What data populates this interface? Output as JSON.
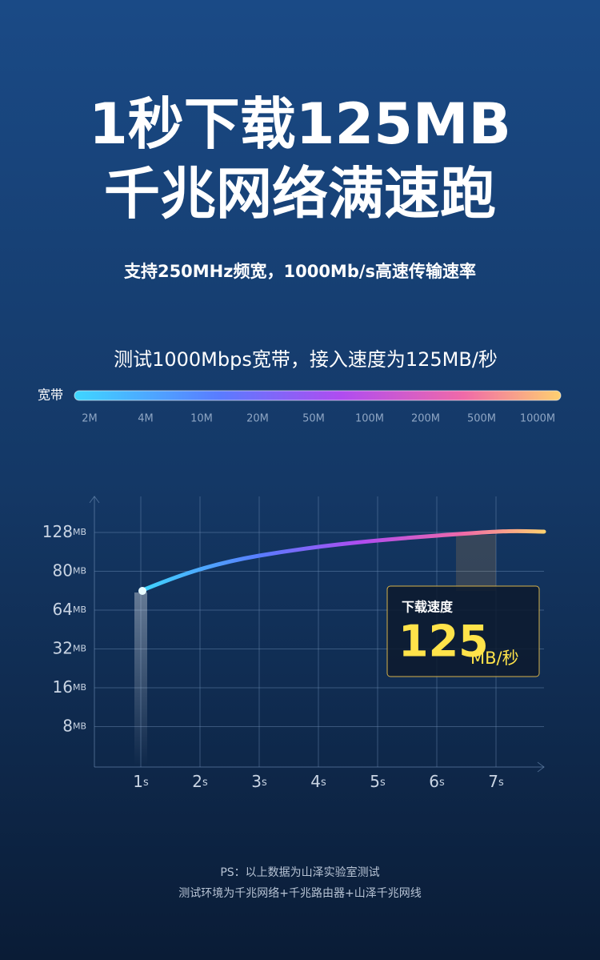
{
  "header": {
    "title_lines": [
      "1秒下载125MB",
      "千兆网络满速跑"
    ],
    "subtitle": "支持250MHz频宽，1000Mb/s高速传输速率"
  },
  "bandwidth": {
    "caption": "测试1000Mbps宽带，接入速度为125MB/秒",
    "label": "宽带",
    "ticks": [
      "2M",
      "4M",
      "10M",
      "20M",
      "50M",
      "100M",
      "200M",
      "500M",
      "1000M"
    ]
  },
  "speed_chart": {
    "y_labels": [
      {
        "num": "128",
        "unit": "MB"
      },
      {
        "num": "80",
        "unit": "MB"
      },
      {
        "num": "64",
        "unit": "MB"
      },
      {
        "num": "32",
        "unit": "MB"
      },
      {
        "num": "16",
        "unit": "MB"
      },
      {
        "num": "8",
        "unit": "MB"
      }
    ],
    "x_labels": [
      {
        "num": "1",
        "unit": "s"
      },
      {
        "num": "2",
        "unit": "s"
      },
      {
        "num": "3",
        "unit": "s"
      },
      {
        "num": "4",
        "unit": "s"
      },
      {
        "num": "5",
        "unit": "s"
      },
      {
        "num": "6",
        "unit": "s"
      },
      {
        "num": "7",
        "unit": "s"
      }
    ],
    "callout": {
      "title": "下载速度",
      "value": "125",
      "unit": "MB/秒"
    }
  },
  "footnote": [
    "PS：以上数据为山泽实验室测试",
    "测试环境为千兆网络+千兆路由器+山泽千兆网线"
  ]
}
